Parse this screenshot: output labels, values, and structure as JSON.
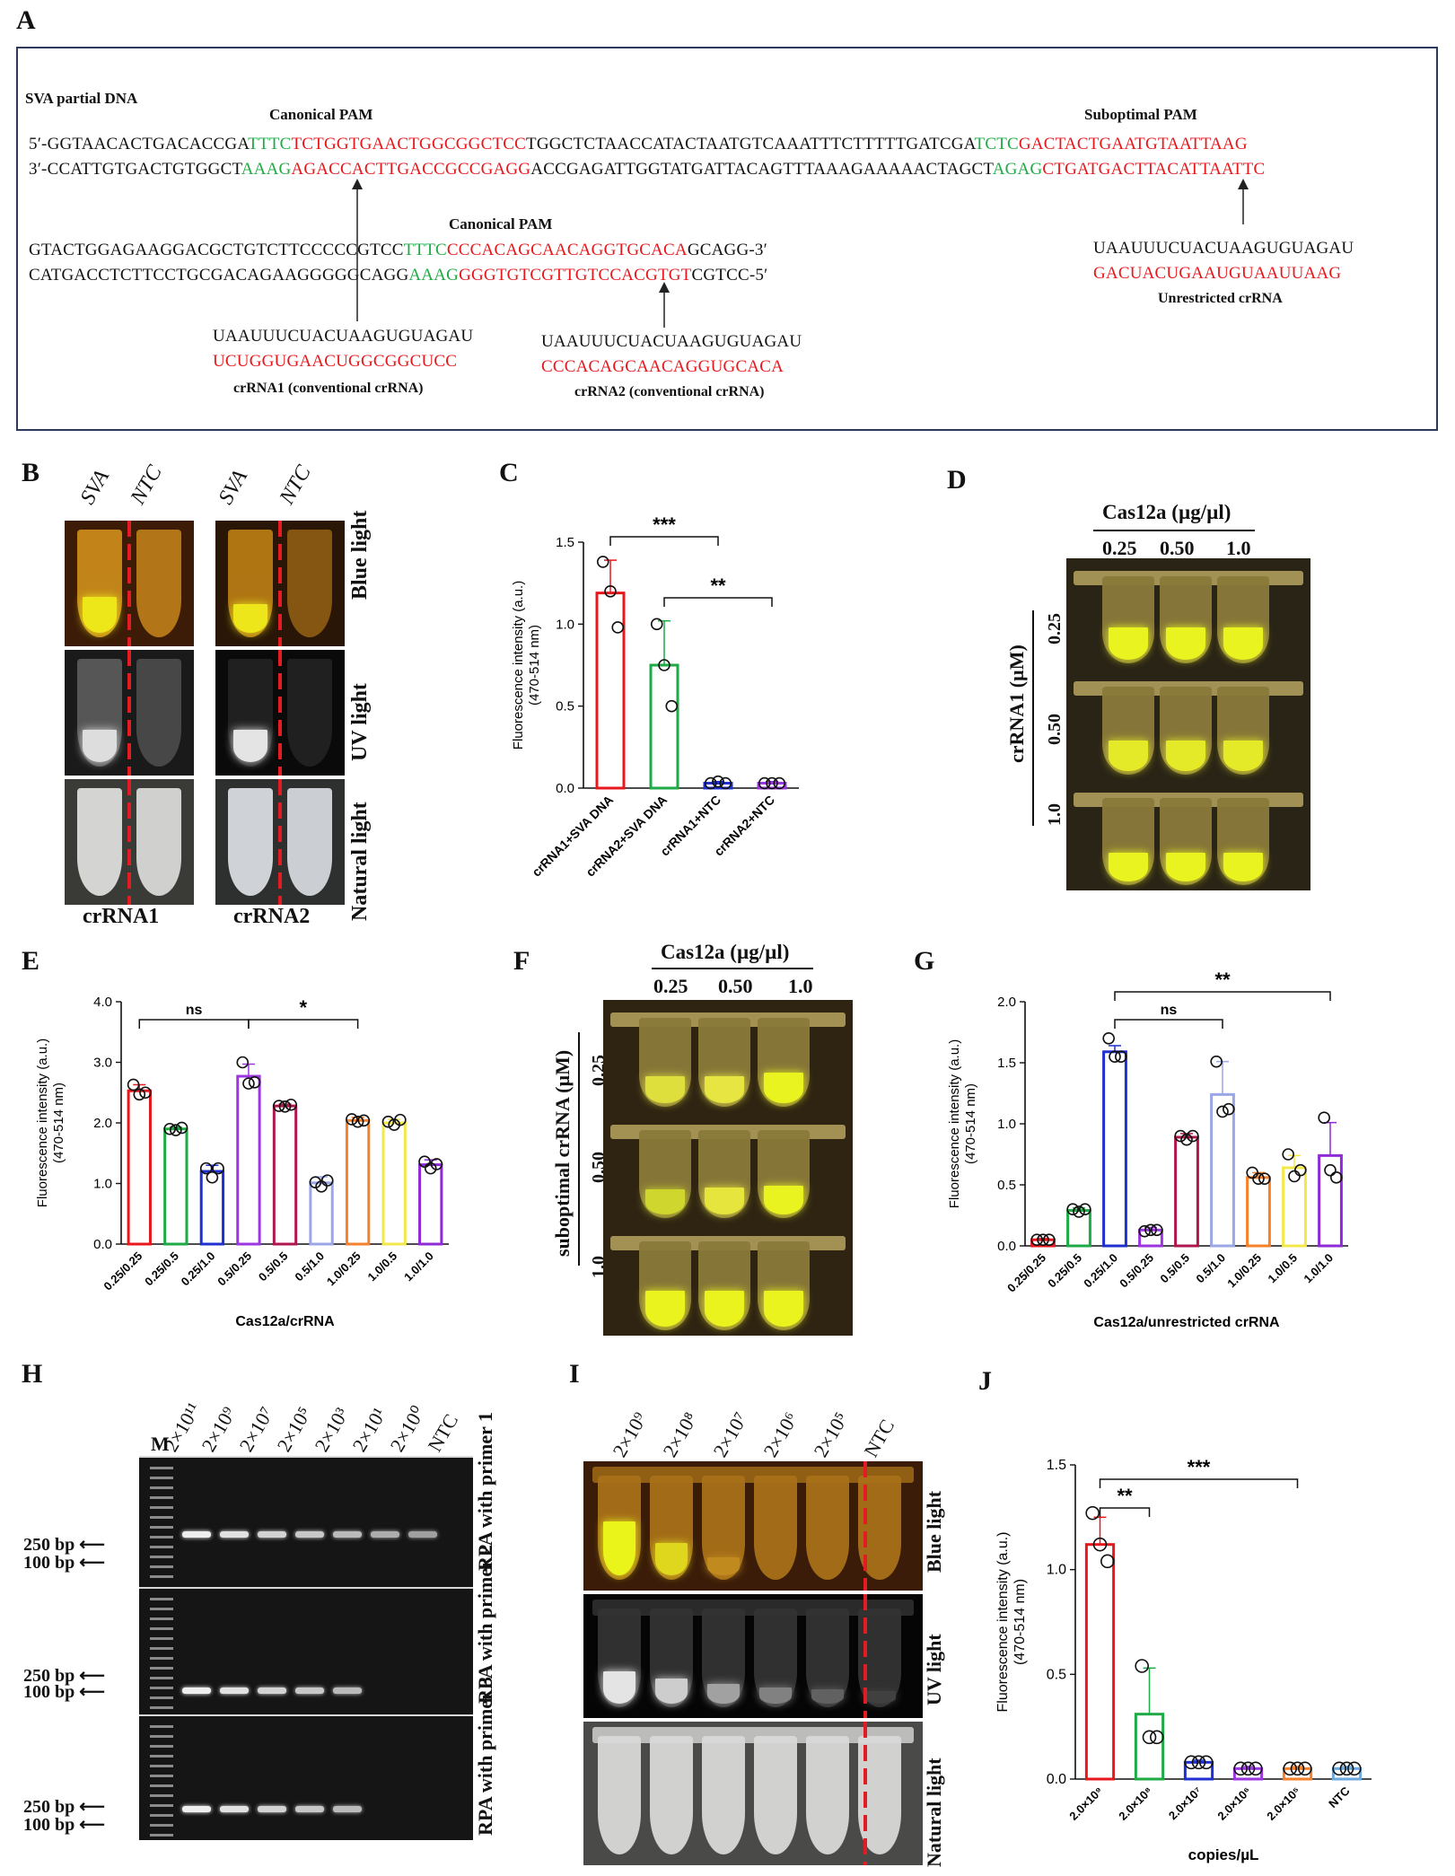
{
  "panels": {
    "A": "A",
    "B": "B",
    "C": "C",
    "D": "D",
    "E": "E",
    "F": "F",
    "G": "G",
    "H": "H",
    "I": "I",
    "J": "J"
  },
  "panelA": {
    "heading": "SVA partial DNA",
    "pam_labels": {
      "canonical1": "Canonical PAM",
      "suboptimal": "Suboptimal PAM",
      "canonical2": "Canonical PAM"
    },
    "row1_top": {
      "a": "5′-GGTAACACTGACACCGA",
      "b": "TTTC",
      "c": "TCTGGTGAACTGGCGGCTCC",
      "d": "TGGCTCTAACCATACTAATGTCAAATTTCTTTTTGATCGA",
      "e": "TCTC",
      "f": "GACTACTGAATGTAATTAAG"
    },
    "row1_bot": {
      "a": "3′-CCATTGTGACTGTGGCT",
      "b": "AAAG",
      "c": "AGACCACTTGACCGCCGAGG",
      "d": "ACCGAGATTGGTATGATTACAGTTTAAAGAAAAACTAGCT",
      "e": "AGAG",
      "f": "CTGATGACTTACATTAATTC"
    },
    "row2_top": {
      "a": "GTACTGGAGAAGGACGCTGTCTTCCCCCGTCC",
      "b": "TTTC",
      "c": "CCCACAGCAACAGGTGCACA",
      "d": "GCAGG-3′"
    },
    "row2_bot": {
      "a": "CATGACCTCTTCCTGCGACAGAAGGGGGCAGG",
      "b": "AAAG",
      "c": "GGGTGTCGTTGTCCACGTGT",
      "d": "CGTCC-5′"
    },
    "crRNA1": {
      "scaffold": "UAAUUUCUACUAAGUGUAGAU",
      "spacer": "UCUGGUGAACUGGCGGCUCC",
      "caption": "crRNA1 (conventional crRNA)"
    },
    "crRNA2": {
      "scaffold": "UAAUUUCUACUAAGUGUAGAU",
      "spacer": "CCCACAGCAACAGGUGCACA",
      "caption": "crRNA2 (conventional crRNA)"
    },
    "crRNA3": {
      "scaffold": "UAAUUUCUACUAAGUGUAGAU",
      "spacer": "GACUACUGAAUGUAAUUAAG",
      "caption": "Unrestricted crRNA"
    }
  },
  "panelB": {
    "col_heads": [
      "SVA",
      "NTC",
      "SVA",
      "NTC"
    ],
    "row_labels": [
      "Blue light",
      "UV light",
      "Natural light"
    ],
    "bottom_labels": [
      "crRNA1",
      "crRNA2"
    ]
  },
  "panelD": {
    "header": "Cas12a (µg/µl)",
    "cols": [
      "0.25",
      "0.50",
      "1.0"
    ],
    "side": "crRNA1 (µM)",
    "rows": [
      "0.25",
      "0.50",
      "1.0"
    ]
  },
  "panelF": {
    "header": "Cas12a (µg/µl)",
    "cols": [
      "0.25",
      "0.50",
      "1.0"
    ],
    "side": "suboptimal crRNA (µM)",
    "rows": [
      "0.25",
      "0.50",
      "1.0"
    ]
  },
  "panelH": {
    "marker": "M",
    "lanes": [
      "2×10¹¹",
      "2×10⁹",
      "2×10⁷",
      "2×10⁵",
      "2×10³",
      "2×10¹",
      "2×10⁰",
      "NTC"
    ],
    "bp": [
      "250 bp",
      "100 bp"
    ],
    "row_labels": [
      "RPA with primer 1",
      "RPA with primer 2",
      "RPA with primer 3"
    ]
  },
  "panelI": {
    "lanes": [
      "2×10⁹",
      "2×10⁸",
      "2×10⁷",
      "2×10⁶",
      "2×10⁵",
      "NTC"
    ],
    "row_labels": [
      "Blue light",
      "UV light",
      "Natural light"
    ]
  },
  "colors": {
    "red": "#e8171c",
    "green": "#1eaa44",
    "blue": "#1f2fd0",
    "purple": "#9b36e0",
    "maroon": "#b0174e",
    "lavender": "#9aa6e6",
    "orange": "#f5822a",
    "yellow": "#f2e84a",
    "violet": "#8e2bd6"
  },
  "chart_data": [
    {
      "id": "C",
      "type": "bar",
      "ylabel": "Fluorescence intensity (a.u.) (470-514 nm)",
      "ylim": [
        0,
        1.5
      ],
      "yticks": [
        "0.0",
        "0.5",
        "1.0",
        "1.5"
      ],
      "categories": [
        "crRNA1+SVA DNA",
        "crRNA2+SVA DNA",
        "crRNA1+NTC",
        "crRNA2+NTC"
      ],
      "values": [
        1.19,
        0.75,
        0.03,
        0.03
      ],
      "errors": [
        0.2,
        0.27,
        0.01,
        0.01
      ],
      "points": [
        [
          1.38,
          1.2,
          0.98
        ],
        [
          1.0,
          0.75,
          0.5
        ],
        [
          0.03,
          0.04,
          0.03
        ],
        [
          0.03,
          0.03,
          0.03
        ]
      ],
      "colors": [
        "#e8171c",
        "#1eaa44",
        "#1f2fd0",
        "#9b36e0"
      ],
      "sig": [
        {
          "from": 0,
          "to": 2,
          "label": "***"
        },
        {
          "from": 1,
          "to": 3,
          "label": "**"
        }
      ]
    },
    {
      "id": "E",
      "type": "bar",
      "xlabel": "Cas12a/crRNA",
      "ylabel": "Fluorescence intensity (a.u.) (470-514 nm)",
      "ylim": [
        0,
        4
      ],
      "yticks": [
        "0.0",
        "1.0",
        "2.0",
        "3.0",
        "4.0"
      ],
      "categories": [
        "0.25/0.25",
        "0.25/0.5",
        "0.25/1.0",
        "0.5/0.25",
        "0.5/0.5",
        "0.5/1.0",
        "1.0/0.25",
        "1.0/0.5",
        "1.0/1.0"
      ],
      "values": [
        2.53,
        1.9,
        1.2,
        2.77,
        2.28,
        1.01,
        2.04,
        2.0,
        1.31
      ],
      "errors": [
        0.1,
        0.03,
        0.1,
        0.2,
        0.03,
        0.1,
        0.05,
        0.06,
        0.08
      ],
      "points": [
        [
          2.63,
          2.47,
          2.5
        ],
        [
          1.9,
          1.88,
          1.92
        ],
        [
          1.25,
          1.1,
          1.25
        ],
        [
          3.0,
          2.65,
          2.67
        ],
        [
          2.28,
          2.27,
          2.3
        ],
        [
          1.02,
          0.95,
          1.05
        ],
        [
          2.06,
          2.02,
          2.04
        ],
        [
          2.02,
          1.97,
          2.05
        ],
        [
          1.36,
          1.25,
          1.32
        ]
      ],
      "colors": [
        "#e8171c",
        "#1eaa44",
        "#1f2fd0",
        "#9b36e0",
        "#b0174e",
        "#9aa6e6",
        "#f5822a",
        "#f2e84a",
        "#8e2bd6"
      ],
      "sig": [
        {
          "from": 0,
          "to": 3,
          "label": "ns"
        },
        {
          "from": 3,
          "to": 6,
          "label": "*"
        }
      ]
    },
    {
      "id": "G",
      "type": "bar",
      "xlabel": "Cas12a/unrestricted crRNA",
      "ylabel": "Fluorescence intensity (a.u.) (470-514 nm)",
      "ylim": [
        0,
        2
      ],
      "yticks": [
        "0.0",
        "0.5",
        "1.0",
        "1.5",
        "2.0"
      ],
      "categories": [
        "0.25/0.25",
        "0.25/0.5",
        "0.25/1.0",
        "0.5/0.25",
        "0.5/0.5",
        "0.5/1.0",
        "1.0/0.25",
        "1.0/0.5",
        "1.0/1.0"
      ],
      "values": [
        0.05,
        0.29,
        1.59,
        0.13,
        0.89,
        1.24,
        0.56,
        0.64,
        0.74
      ],
      "errors": [
        0.01,
        0.02,
        0.05,
        0.02,
        0.03,
        0.27,
        0.04,
        0.1,
        0.27
      ],
      "points": [
        [
          0.05,
          0.05,
          0.05
        ],
        [
          0.3,
          0.28,
          0.3
        ],
        [
          1.7,
          1.55,
          1.55
        ],
        [
          0.12,
          0.13,
          0.13
        ],
        [
          0.9,
          0.87,
          0.9
        ],
        [
          1.51,
          1.1,
          1.12
        ],
        [
          0.6,
          0.55,
          0.55
        ],
        [
          0.75,
          0.57,
          0.62
        ],
        [
          1.05,
          0.62,
          0.56
        ]
      ],
      "colors": [
        "#e8171c",
        "#1eaa44",
        "#1f2fd0",
        "#9b36e0",
        "#b0174e",
        "#9aa6e6",
        "#f5822a",
        "#f2e84a",
        "#8e2bd6"
      ],
      "sig": [
        {
          "from": 2,
          "to": 5,
          "label": "ns"
        },
        {
          "from": 2,
          "to": 8,
          "label": "**"
        }
      ]
    },
    {
      "id": "J",
      "type": "bar",
      "xlabel": "copies/µL",
      "ylabel": "Fluorescence intensity (a.u.) (470-514 nm)",
      "ylim": [
        0,
        1.5
      ],
      "yticks": [
        "0.0",
        "0.5",
        "1.0",
        "1.5"
      ],
      "categories": [
        "2.0×10⁹",
        "2.0×10⁸",
        "2.0×10⁷",
        "2.0×10⁶",
        "2.0×10⁵",
        "NTC"
      ],
      "values": [
        1.12,
        0.31,
        0.08,
        0.05,
        0.05,
        0.05
      ],
      "errors": [
        0.13,
        0.22,
        0.01,
        0.01,
        0.01,
        0.01
      ],
      "points": [
        [
          1.27,
          1.12,
          1.04
        ],
        [
          0.54,
          0.2,
          0.2
        ],
        [
          0.08,
          0.08,
          0.08
        ],
        [
          0.05,
          0.05,
          0.05
        ],
        [
          0.05,
          0.05,
          0.05
        ],
        [
          0.05,
          0.05,
          0.05
        ]
      ],
      "colors": [
        "#e8171c",
        "#1eaa44",
        "#1f2fd0",
        "#9b36e0",
        "#f5822a",
        "#6fa8dc"
      ],
      "sig": [
        {
          "from": 0,
          "to": 1,
          "label": "**"
        },
        {
          "from": 0,
          "to": 4,
          "label": "***"
        }
      ]
    }
  ]
}
